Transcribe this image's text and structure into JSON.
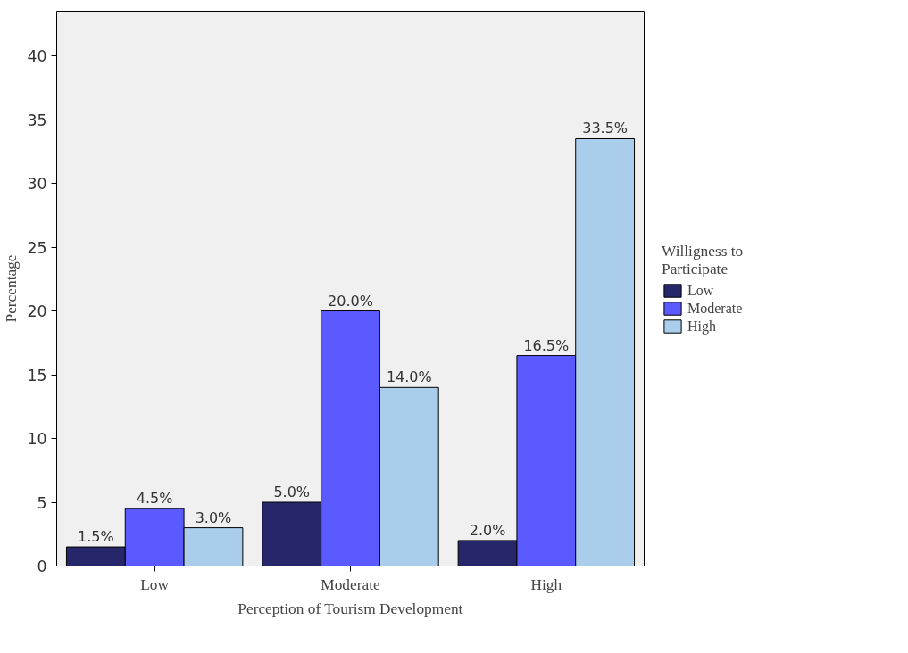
{
  "chart_data": {
    "type": "bar",
    "xlabel": "Perception of Tourism Development",
    "ylabel": "Percentage",
    "legend_title": "Willigness to Participate",
    "categories": [
      "Low",
      "Moderate",
      "High"
    ],
    "series": [
      {
        "name": "Low",
        "color": "#26266b",
        "values": [
          1.5,
          5.0,
          2.0
        ],
        "value_labels": [
          "1.5%",
          "5.0%",
          "2.0%"
        ]
      },
      {
        "name": "Moderate",
        "color": "#5a5aff",
        "values": [
          4.5,
          20.0,
          16.5
        ],
        "value_labels": [
          "4.5%",
          "20.0%",
          "16.5%"
        ]
      },
      {
        "name": "High",
        "color": "#aacdeb",
        "values": [
          3.0,
          14.0,
          33.5
        ],
        "value_labels": [
          "3.0%",
          "14.0%",
          "33.5%"
        ]
      }
    ],
    "ylim": [
      0,
      43.5
    ],
    "yticks": [
      0,
      5,
      10,
      15,
      20,
      25,
      30,
      35,
      40
    ],
    "grid": false,
    "legend": "right"
  }
}
